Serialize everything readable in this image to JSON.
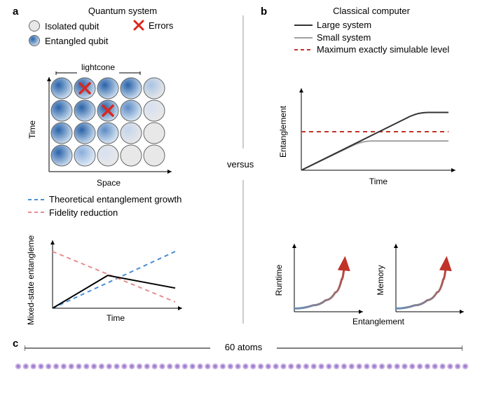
{
  "panel_a": {
    "label": "a",
    "title": "Quantum system",
    "legend": {
      "isolated": "Isolated qubit",
      "errors": "Errors",
      "entangled": "Entangled qubit"
    },
    "lightcone_label": "lightcone",
    "grid": {
      "rows": 4,
      "cols": 5,
      "qubit_isolated_fill": "#e8e8e8",
      "qubit_stroke": "#666666",
      "entangled_gradient_inner": "#2962a8",
      "entangled_gradient_outer": "#cfe0f0",
      "error_color": "#d9281e",
      "error_positions": [
        [
          0,
          1
        ],
        [
          1,
          2
        ]
      ],
      "entangled_level": [
        [
          1,
          1,
          1,
          1,
          0.3
        ],
        [
          1,
          1,
          1,
          0.7,
          0.1
        ],
        [
          1,
          1,
          0.7,
          0.2,
          0
        ],
        [
          1,
          0.5,
          0.1,
          0,
          0
        ]
      ]
    },
    "axes_top": {
      "x": "Space",
      "y": "Time"
    },
    "lower_legend": {
      "theoretical": "Theoretical entanglement growth",
      "fidelity": "Fidelity reduction",
      "theoretical_color": "#4a8fd6",
      "fidelity_color": "#e88c8c"
    },
    "lower_chart": {
      "type": "line",
      "x_label": "Time",
      "y_label": "Mixed-state entanglement",
      "xlim": [
        0,
        10
      ],
      "ylim": [
        0,
        10
      ],
      "theoretical_line": [
        [
          0,
          0
        ],
        [
          10,
          9
        ]
      ],
      "fidelity_line": [
        [
          0,
          9
        ],
        [
          10,
          1
        ]
      ],
      "actual_line": [
        [
          0,
          0
        ],
        [
          4.5,
          5.2
        ],
        [
          10,
          3.2
        ]
      ],
      "actual_color": "#000000",
      "line_width": 2
    }
  },
  "versus_label": "versus",
  "divider_color": "#999999",
  "panel_b": {
    "label": "b",
    "title": "Classical computer",
    "legend": {
      "large": "Large system",
      "small": "Small system",
      "max": "Maximum exactly simulable level",
      "large_color": "#333333",
      "small_color": "#a0a0a0",
      "max_color": "#c1322a"
    },
    "upper_chart": {
      "type": "line",
      "x_label": "Time",
      "y_label": "Entanglement",
      "xlim": [
        0,
        10
      ],
      "ylim": [
        0,
        10
      ],
      "large_line": [
        [
          0,
          0
        ],
        [
          8,
          7.5
        ],
        [
          10,
          7.5
        ]
      ],
      "small_line": [
        [
          0,
          0
        ],
        [
          4.2,
          3.8
        ],
        [
          10,
          3.8
        ]
      ],
      "max_line_y": 5.0,
      "line_width": 2
    },
    "lower_charts": {
      "runtime": {
        "x_label": "Entanglement",
        "y_label": "Runtime",
        "curve": [
          [
            0,
            0.5
          ],
          [
            3,
            1
          ],
          [
            5,
            1.8
          ],
          [
            6.5,
            3
          ],
          [
            7.5,
            5
          ],
          [
            8,
            8
          ]
        ],
        "gradient_start": "#6a8fb5",
        "gradient_end": "#c1322a",
        "arrow_color": "#c1322a"
      },
      "memory": {
        "x_label": "Entanglement",
        "y_label": "Memory",
        "curve": [
          [
            0,
            0.5
          ],
          [
            3,
            1
          ],
          [
            5,
            1.8
          ],
          [
            6.5,
            3
          ],
          [
            7.5,
            5
          ],
          [
            8,
            8
          ]
        ],
        "gradient_start": "#6a8fb5",
        "gradient_end": "#c1322a",
        "arrow_color": "#c1322a"
      }
    }
  },
  "panel_c": {
    "label": "c",
    "atoms_label": "60 atoms",
    "atom_count": 60,
    "atom_color_inner": "#8a5cc4",
    "atom_color_outer": "#e6d8f2",
    "rule_color": "#000000"
  }
}
